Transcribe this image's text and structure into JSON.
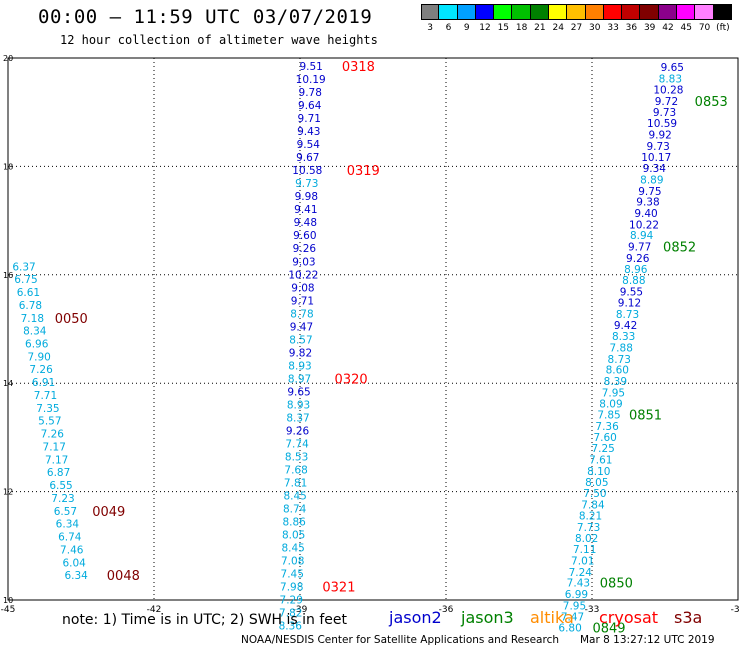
{
  "header": {
    "title": "00:00 – 11:59 UTC 03/07/2019",
    "subtitle": "12 hour collection of altimeter wave heights"
  },
  "colorbar": {
    "labels": [
      "3",
      "6",
      "9",
      "12",
      "15",
      "18",
      "21",
      "24",
      "27",
      "30",
      "33",
      "36",
      "39",
      "42",
      "45",
      "70",
      "(ft)"
    ],
    "colors": [
      "#7f7f7f",
      "#00e5ff",
      "#00a0ff",
      "#0000ff",
      "#00ff00",
      "#00c000",
      "#008000",
      "#ffff00",
      "#ffc000",
      "#ff8000",
      "#ff0000",
      "#c00000",
      "#800000",
      "#8b008b",
      "#ff00ff",
      "#ff80ff",
      "#000000"
    ]
  },
  "colors": {
    "jason2": "#0000cc",
    "jason3": "#008000",
    "altika": "#ff8c00",
    "cryosat": "#ff0000",
    "s3a": "#800000",
    "light_value": "#00aadd"
  },
  "map": {
    "lon_range": [
      -45,
      -30
    ],
    "lat_range": [
      10,
      20
    ],
    "x_tick_labels": [
      "-45",
      "-42",
      "-39",
      "-36",
      "-33",
      "-30"
    ],
    "y_tick_labels": [
      "10",
      "12",
      "14",
      "16",
      "18",
      "20"
    ],
    "grid": "dotted"
  },
  "tracks": [
    {
      "satellite": "s3a",
      "values": [
        {
          "v": "6.37",
          "c": "light",
          "lat": 16.15,
          "lon": -44.67
        },
        {
          "v": "6.75",
          "c": "light",
          "lat": 15.92,
          "lon": -44.63
        },
        {
          "v": "6.61",
          "c": "light",
          "lat": 15.68,
          "lon": -44.58
        },
        {
          "v": "6.78",
          "c": "light",
          "lat": 15.44,
          "lon": -44.54
        },
        {
          "v": "7.18",
          "c": "light",
          "lat": 15.2,
          "lon": -44.5
        },
        {
          "v": "8.34",
          "c": "light",
          "lat": 14.97,
          "lon": -44.45
        },
        {
          "v": "6.96",
          "c": "light",
          "lat": 14.73,
          "lon": -44.41
        },
        {
          "v": "7.90",
          "c": "light",
          "lat": 14.49,
          "lon": -44.36
        },
        {
          "v": "7.26",
          "c": "light",
          "lat": 14.26,
          "lon": -44.32
        },
        {
          "v": "6.91",
          "c": "light",
          "lat": 14.02,
          "lon": -44.27
        },
        {
          "v": "7.71",
          "c": "light",
          "lat": 13.78,
          "lon": -44.23
        },
        {
          "v": "7.35",
          "c": "light",
          "lat": 13.54,
          "lon": -44.18
        },
        {
          "v": "5.57",
          "c": "light",
          "lat": 13.31,
          "lon": -44.14
        },
        {
          "v": "7.26",
          "c": "light",
          "lat": 13.07,
          "lon": -44.09
        },
        {
          "v": "7.17",
          "c": "light",
          "lat": 12.83,
          "lon": -44.05
        },
        {
          "v": "7.17",
          "c": "light",
          "lat": 12.59,
          "lon": -44.0
        },
        {
          "v": "6.87",
          "c": "light",
          "lat": 12.36,
          "lon": -43.96
        },
        {
          "v": "6.55",
          "c": "light",
          "lat": 12.12,
          "lon": -43.91
        },
        {
          "v": "7.23",
          "c": "light",
          "lat": 11.88,
          "lon": -43.87
        },
        {
          "v": "6.57",
          "c": "light",
          "lat": 11.64,
          "lon": -43.82
        },
        {
          "v": "6.34",
          "c": "light",
          "lat": 11.41,
          "lon": -43.78
        },
        {
          "v": "6.74",
          "c": "light",
          "lat": 11.17,
          "lon": -43.73
        },
        {
          "v": "7.46",
          "c": "light",
          "lat": 10.93,
          "lon": -43.69
        },
        {
          "v": "6.04",
          "c": "light",
          "lat": 10.69,
          "lon": -43.64
        },
        {
          "v": "6.34",
          "c": "light",
          "lat": 10.46,
          "lon": -43.6
        }
      ],
      "times": [
        {
          "t": "0050",
          "lat": 15.2,
          "lon": -43.7
        },
        {
          "t": "0049",
          "lat": 11.64,
          "lon": -42.93
        },
        {
          "t": "0048",
          "lat": 10.46,
          "lon": -42.63
        }
      ]
    },
    {
      "satellite": "cryosat",
      "values": [
        {
          "v": "9.51",
          "c": "dark",
          "lat": 19.85,
          "lon": -38.77
        },
        {
          "v": "10.19",
          "c": "dark",
          "lat": 19.61,
          "lon": -38.78
        },
        {
          "v": "9.78",
          "c": "dark",
          "lat": 19.37,
          "lon": -38.79
        },
        {
          "v": "9.64",
          "c": "dark",
          "lat": 19.13,
          "lon": -38.8
        },
        {
          "v": "9.71",
          "c": "dark",
          "lat": 18.89,
          "lon": -38.81
        },
        {
          "v": "9.43",
          "c": "dark",
          "lat": 18.65,
          "lon": -38.82
        },
        {
          "v": "9.54",
          "c": "dark",
          "lat": 18.41,
          "lon": -38.83
        },
        {
          "v": "9.67",
          "c": "dark",
          "lat": 18.17,
          "lon": -38.84
        },
        {
          "v": "10.58",
          "c": "dark",
          "lat": 17.93,
          "lon": -38.85
        },
        {
          "v": "9.73",
          "c": "light",
          "lat": 17.69,
          "lon": -38.86
        },
        {
          "v": "9.98",
          "c": "dark",
          "lat": 17.45,
          "lon": -38.87
        },
        {
          "v": "9.41",
          "c": "dark",
          "lat": 17.21,
          "lon": -38.88
        },
        {
          "v": "9.48",
          "c": "dark",
          "lat": 16.97,
          "lon": -38.89
        },
        {
          "v": "9.60",
          "c": "dark",
          "lat": 16.73,
          "lon": -38.9
        },
        {
          "v": "9.26",
          "c": "dark",
          "lat": 16.49,
          "lon": -38.91
        },
        {
          "v": "9.03",
          "c": "dark",
          "lat": 16.25,
          "lon": -38.92
        },
        {
          "v": "10.22",
          "c": "dark",
          "lat": 16.01,
          "lon": -38.93
        },
        {
          "v": "9.08",
          "c": "dark",
          "lat": 15.77,
          "lon": -38.94
        },
        {
          "v": "9.71",
          "c": "dark",
          "lat": 15.53,
          "lon": -38.95
        },
        {
          "v": "8.78",
          "c": "light",
          "lat": 15.29,
          "lon": -38.96
        },
        {
          "v": "9.47",
          "c": "dark",
          "lat": 15.05,
          "lon": -38.97
        },
        {
          "v": "8.57",
          "c": "light",
          "lat": 14.81,
          "lon": -38.98
        },
        {
          "v": "9.82",
          "c": "dark",
          "lat": 14.57,
          "lon": -38.99
        },
        {
          "v": "8.93",
          "c": "light",
          "lat": 14.33,
          "lon": -39.0
        },
        {
          "v": "8.97",
          "c": "light",
          "lat": 14.09,
          "lon": -39.01
        },
        {
          "v": "9.65",
          "c": "dark",
          "lat": 13.85,
          "lon": -39.02
        },
        {
          "v": "8.93",
          "c": "light",
          "lat": 13.61,
          "lon": -39.03
        },
        {
          "v": "8.37",
          "c": "light",
          "lat": 13.37,
          "lon": -39.04
        },
        {
          "v": "9.26",
          "c": "dark",
          "lat": 13.13,
          "lon": -39.05
        },
        {
          "v": "7.74",
          "c": "light",
          "lat": 12.89,
          "lon": -39.06
        },
        {
          "v": "8.53",
          "c": "light",
          "lat": 12.65,
          "lon": -39.07
        },
        {
          "v": "7.68",
          "c": "light",
          "lat": 12.41,
          "lon": -39.08
        },
        {
          "v": "7.81",
          "c": "light",
          "lat": 12.17,
          "lon": -39.09
        },
        {
          "v": "8.45",
          "c": "light",
          "lat": 11.93,
          "lon": -39.1
        },
        {
          "v": "8.74",
          "c": "light",
          "lat": 11.69,
          "lon": -39.11
        },
        {
          "v": "8.86",
          "c": "light",
          "lat": 11.45,
          "lon": -39.12
        },
        {
          "v": "8.05",
          "c": "light",
          "lat": 11.21,
          "lon": -39.13
        },
        {
          "v": "8.45",
          "c": "light",
          "lat": 10.97,
          "lon": -39.14
        },
        {
          "v": "7.08",
          "c": "light",
          "lat": 10.73,
          "lon": -39.15
        },
        {
          "v": "7.45",
          "c": "light",
          "lat": 10.49,
          "lon": -39.16
        },
        {
          "v": "7.98",
          "c": "light",
          "lat": 10.25,
          "lon": -39.17
        },
        {
          "v": "7.29",
          "c": "light",
          "lat": 10.01,
          "lon": -39.18
        },
        {
          "v": "7.82",
          "c": "light",
          "lat": 9.77,
          "lon": -39.19
        },
        {
          "v": "8.36",
          "c": "light",
          "lat": 9.53,
          "lon": -39.2
        }
      ],
      "times": [
        {
          "t": "0318",
          "lat": 19.85,
          "lon": -37.8
        },
        {
          "t": "0319",
          "lat": 17.93,
          "lon": -37.7
        },
        {
          "t": "0320",
          "lat": 14.09,
          "lon": -37.95
        },
        {
          "t": "0321",
          "lat": 10.25,
          "lon": -38.2
        }
      ]
    },
    {
      "satellite": "jason3",
      "values": [
        {
          "v": "9.65",
          "c": "dark",
          "lat": 19.83,
          "lon": -31.35
        },
        {
          "v": "8.83",
          "c": "light",
          "lat": 19.62,
          "lon": -31.39
        },
        {
          "v": "10.28",
          "c": "dark",
          "lat": 19.42,
          "lon": -31.43
        },
        {
          "v": "9.72",
          "c": "dark",
          "lat": 19.21,
          "lon": -31.47
        },
        {
          "v": "9.73",
          "c": "dark",
          "lat": 19.0,
          "lon": -31.51
        },
        {
          "v": "10.59",
          "c": "dark",
          "lat": 18.8,
          "lon": -31.56
        },
        {
          "v": "9.92",
          "c": "dark",
          "lat": 18.59,
          "lon": -31.6
        },
        {
          "v": "9.73",
          "c": "dark",
          "lat": 18.38,
          "lon": -31.64
        },
        {
          "v": "10.17",
          "c": "dark",
          "lat": 18.17,
          "lon": -31.68
        },
        {
          "v": "9.34",
          "c": "dark",
          "lat": 17.97,
          "lon": -31.72
        },
        {
          "v": "8.89",
          "c": "light",
          "lat": 17.76,
          "lon": -31.77
        },
        {
          "v": "9.75",
          "c": "dark",
          "lat": 17.55,
          "lon": -31.81
        },
        {
          "v": "9.38",
          "c": "dark",
          "lat": 17.35,
          "lon": -31.85
        },
        {
          "v": "9.40",
          "c": "dark",
          "lat": 17.14,
          "lon": -31.89
        },
        {
          "v": "10.22",
          "c": "dark",
          "lat": 16.93,
          "lon": -31.93
        },
        {
          "v": "8.94",
          "c": "light",
          "lat": 16.73,
          "lon": -31.98
        },
        {
          "v": "9.77",
          "c": "dark",
          "lat": 16.52,
          "lon": -32.02
        },
        {
          "v": "9.26",
          "c": "dark",
          "lat": 16.31,
          "lon": -32.06
        },
        {
          "v": "8.96",
          "c": "light",
          "lat": 16.11,
          "lon": -32.1
        },
        {
          "v": "8.88",
          "c": "light",
          "lat": 15.9,
          "lon": -32.14
        },
        {
          "v": "9.55",
          "c": "dark",
          "lat": 15.69,
          "lon": -32.19
        },
        {
          "v": "9.12",
          "c": "dark",
          "lat": 15.49,
          "lon": -32.23
        },
        {
          "v": "8.73",
          "c": "light",
          "lat": 15.28,
          "lon": -32.27
        },
        {
          "v": "9.42",
          "c": "dark",
          "lat": 15.07,
          "lon": -32.31
        },
        {
          "v": "8.33",
          "c": "light",
          "lat": 14.87,
          "lon": -32.35
        },
        {
          "v": "7.88",
          "c": "light",
          "lat": 14.66,
          "lon": -32.4
        },
        {
          "v": "8.73",
          "c": "light",
          "lat": 14.45,
          "lon": -32.44
        },
        {
          "v": "8.60",
          "c": "light",
          "lat": 14.25,
          "lon": -32.48
        },
        {
          "v": "8.39",
          "c": "light",
          "lat": 14.04,
          "lon": -32.52
        },
        {
          "v": "7.95",
          "c": "light",
          "lat": 13.83,
          "lon": -32.56
        },
        {
          "v": "8.09",
          "c": "light",
          "lat": 13.63,
          "lon": -32.61
        },
        {
          "v": "7.85",
          "c": "light",
          "lat": 13.42,
          "lon": -32.65
        },
        {
          "v": "7.36",
          "c": "light",
          "lat": 13.21,
          "lon": -32.69
        },
        {
          "v": "7.60",
          "c": "light",
          "lat": 13.01,
          "lon": -32.73
        },
        {
          "v": "7.25",
          "c": "light",
          "lat": 12.8,
          "lon": -32.77
        },
        {
          "v": "7.61",
          "c": "light",
          "lat": 12.59,
          "lon": -32.82
        },
        {
          "v": "8.10",
          "c": "light",
          "lat": 12.38,
          "lon": -32.86
        },
        {
          "v": "8.05",
          "c": "light",
          "lat": 12.18,
          "lon": -32.9
        },
        {
          "v": "7.50",
          "c": "light",
          "lat": 11.97,
          "lon": -32.94
        },
        {
          "v": "7.84",
          "c": "light",
          "lat": 11.76,
          "lon": -32.98
        },
        {
          "v": "8.21",
          "c": "light",
          "lat": 11.56,
          "lon": -33.03
        },
        {
          "v": "7.73",
          "c": "light",
          "lat": 11.35,
          "lon": -33.07
        },
        {
          "v": "8.02",
          "c": "light",
          "lat": 11.14,
          "lon": -33.11
        },
        {
          "v": "7.11",
          "c": "light",
          "lat": 10.94,
          "lon": -33.15
        },
        {
          "v": "7.01",
          "c": "light",
          "lat": 10.73,
          "lon": -33.19
        },
        {
          "v": "7.24",
          "c": "light",
          "lat": 10.52,
          "lon": -33.24
        },
        {
          "v": "7.43",
          "c": "light",
          "lat": 10.32,
          "lon": -33.28
        },
        {
          "v": "6.99",
          "c": "light",
          "lat": 10.11,
          "lon": -33.32
        },
        {
          "v": "7.95",
          "c": "light",
          "lat": 9.9,
          "lon": -33.36
        },
        {
          "v": "7.47",
          "c": "light",
          "lat": 9.7,
          "lon": -33.4
        },
        {
          "v": "6.80",
          "c": "light",
          "lat": 9.49,
          "lon": -33.45
        }
      ],
      "times": [
        {
          "t": "0853",
          "lat": 19.21,
          "lon": -30.55
        },
        {
          "t": "0852",
          "lat": 16.52,
          "lon": -31.2
        },
        {
          "t": "0851",
          "lat": 13.42,
          "lon": -31.9
        },
        {
          "t": "0850",
          "lat": 10.32,
          "lon": -32.5
        },
        {
          "t": "0849",
          "lat": 9.49,
          "lon": -32.65
        }
      ]
    }
  ],
  "footer": {
    "note": "note:  1) Time is in UTC;  2) SWH is in feet",
    "legend": [
      "jason2",
      "jason3",
      "altika",
      "cryosat",
      "s3a"
    ],
    "credit": "NOAA/NESDIS Center for Satellite Applications and Research",
    "timestamp": "Mar  8 13:27:12 UTC 2019"
  }
}
